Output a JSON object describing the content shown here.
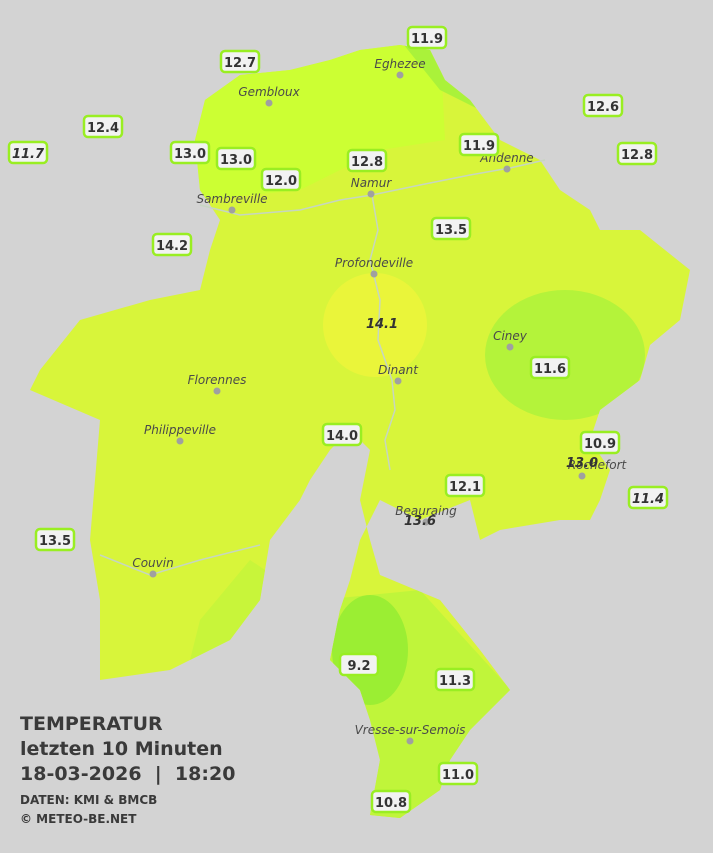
{
  "title": {
    "heading": "TEMPERATUR",
    "period": "letzten 10 Minuten",
    "timestamp": "18-03-2026  |  18:20",
    "source": "DATEN: KMI & BMCB",
    "copyright": "© METEO-BE.NET"
  },
  "cities": [
    "Eghezee",
    "Gembloux",
    "Andenne",
    "Namur",
    "Sambreville",
    "Profondeville",
    "Ciney",
    "Florennes",
    "Dinant",
    "Philippeville",
    "Rochefort",
    "Beauraing",
    "Couvin",
    "Vresse-sur-Semois"
  ],
  "stations": [
    {
      "reading": "12.7",
      "italic": false
    },
    {
      "reading": "11.9",
      "italic": false
    },
    {
      "reading": "12.4",
      "italic": false
    },
    {
      "reading": "11.7",
      "italic": true
    },
    {
      "reading": "13.0",
      "italic": false
    },
    {
      "reading": "13.0",
      "italic": false
    },
    {
      "reading": "12.0",
      "italic": false
    },
    {
      "reading": "12.8",
      "italic": false
    },
    {
      "reading": "11.9",
      "italic": false
    },
    {
      "reading": "12.6",
      "italic": false
    },
    {
      "reading": "12.8",
      "italic": false
    },
    {
      "reading": "14.2",
      "italic": false
    },
    {
      "reading": "13.5",
      "italic": false
    },
    {
      "reading": "14.1",
      "italic": true
    },
    {
      "reading": "11.6",
      "italic": false
    },
    {
      "reading": "14.0",
      "italic": false
    },
    {
      "reading": "10.9",
      "italic": false
    },
    {
      "reading": "13.0",
      "italic": true
    },
    {
      "reading": "12.1",
      "italic": false
    },
    {
      "reading": "11.4",
      "italic": true
    },
    {
      "reading": "13.6",
      "italic": true
    },
    {
      "reading": "13.5",
      "italic": false
    },
    {
      "reading": "9.2",
      "italic": false
    },
    {
      "reading": "11.3",
      "italic": false
    },
    {
      "reading": "11.0",
      "italic": false
    },
    {
      "reading": "10.8",
      "italic": false
    }
  ]
}
